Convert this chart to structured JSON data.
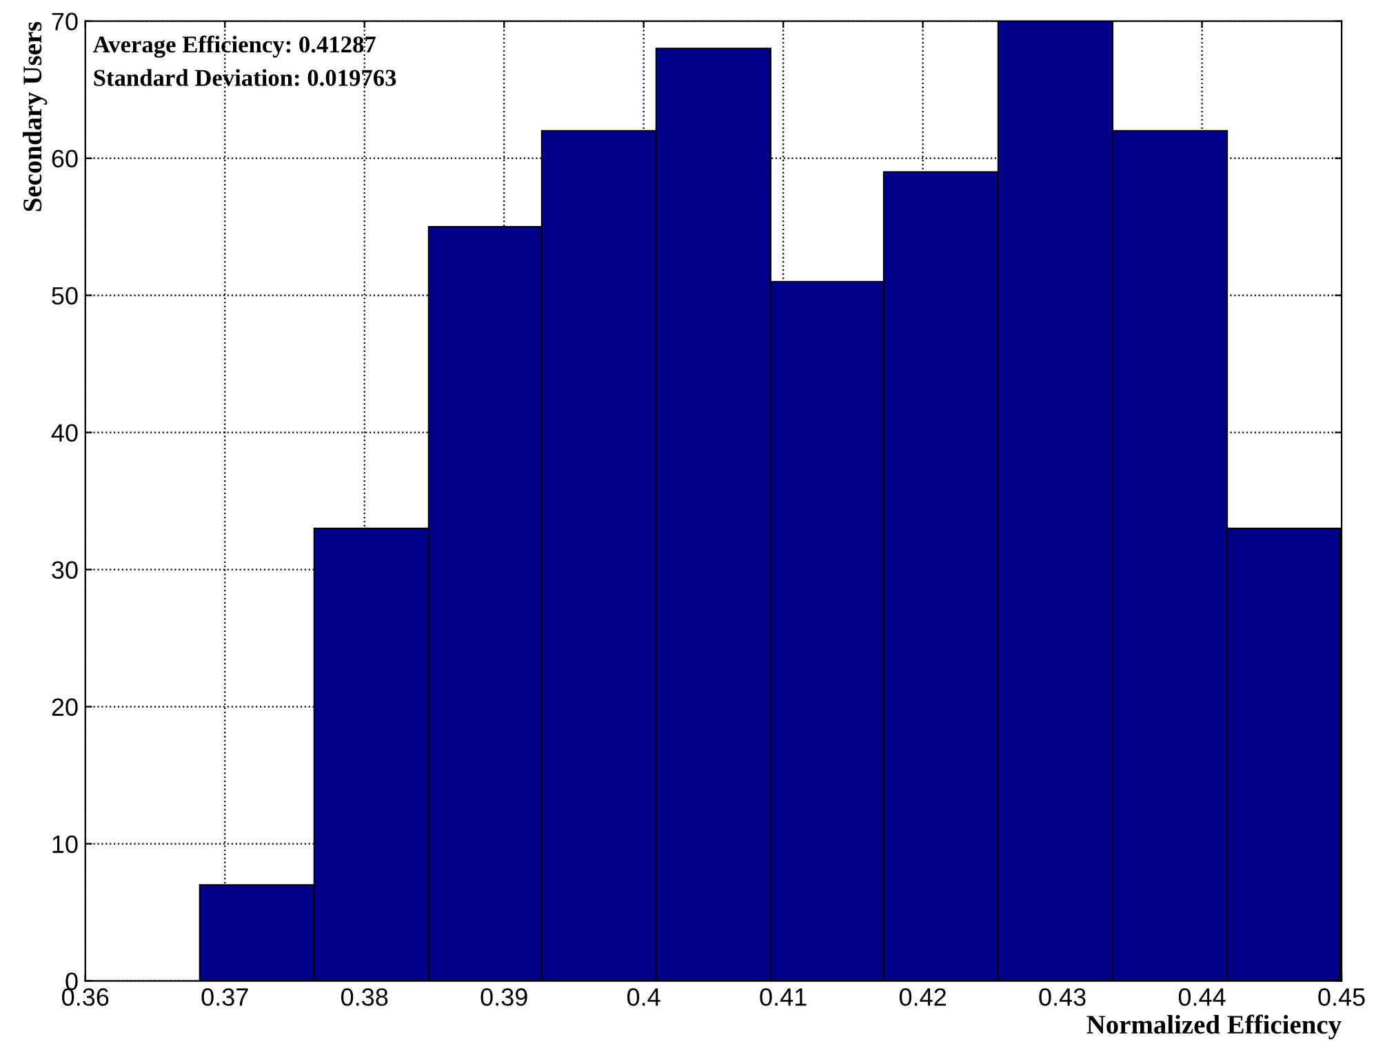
{
  "chart_data": {
    "type": "histogram",
    "xlabel": "Normalized Efficiency",
    "ylabel": "Secondary Users",
    "bins": [
      0.3682,
      0.3764,
      0.3846,
      0.3927,
      0.4009,
      0.4091,
      0.4172,
      0.4254,
      0.4336,
      0.4418,
      0.4499
    ],
    "values": [
      7,
      33,
      55,
      62,
      68,
      51,
      59,
      70,
      62,
      33
    ],
    "color": "#00008b",
    "xlim": [
      0.36,
      0.45
    ],
    "xticks": [
      0.36,
      0.37,
      0.38,
      0.39,
      0.4,
      0.41,
      0.42,
      0.43,
      0.44,
      0.45
    ],
    "ylim": [
      0,
      70
    ],
    "yticks": [
      0,
      10,
      20,
      30,
      40,
      50,
      60,
      70
    ],
    "grid": true,
    "annotations": [
      "Average Efficiency: 0.41287",
      "Standard Deviation: 0.019763"
    ]
  }
}
